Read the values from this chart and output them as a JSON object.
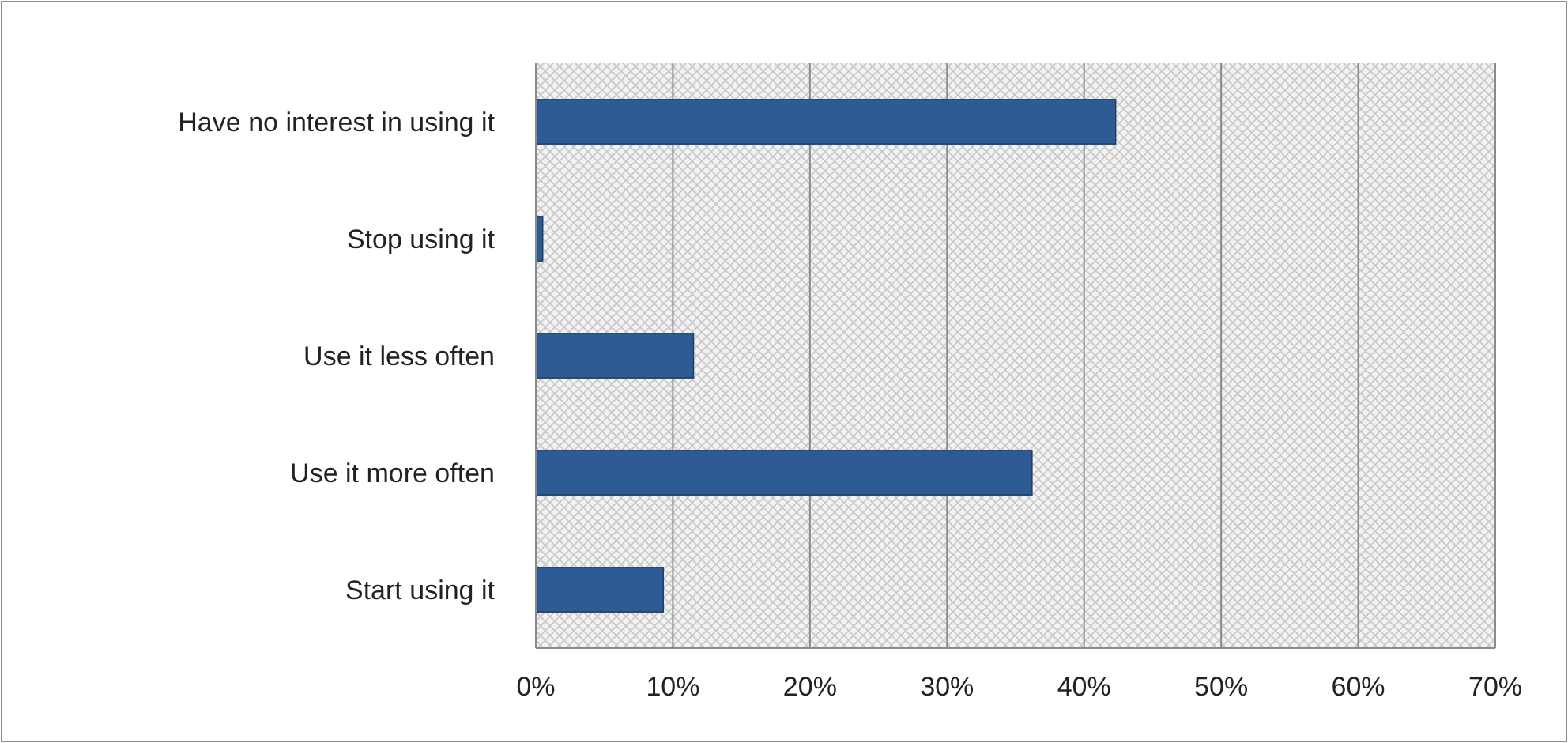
{
  "chart_data": {
    "type": "bar",
    "orientation": "horizontal",
    "categories": [
      "Have no interest in using it",
      "Stop using it",
      "Use it less often",
      "Use it more often",
      "Start using it"
    ],
    "values": [
      42.3,
      0.5,
      11.5,
      36.2,
      9.3
    ],
    "color": "#2e5b94",
    "xlim": [
      0,
      70
    ],
    "xticks": [
      {
        "value": 0,
        "label": "0%"
      },
      {
        "value": 10,
        "label": "10%"
      },
      {
        "value": 20,
        "label": "20%"
      },
      {
        "value": 30,
        "label": "30%"
      },
      {
        "value": 40,
        "label": "40%"
      },
      {
        "value": 50,
        "label": "50%"
      },
      {
        "value": 60,
        "label": "60%"
      },
      {
        "value": 70,
        "label": "70%"
      }
    ],
    "grid": "x"
  }
}
